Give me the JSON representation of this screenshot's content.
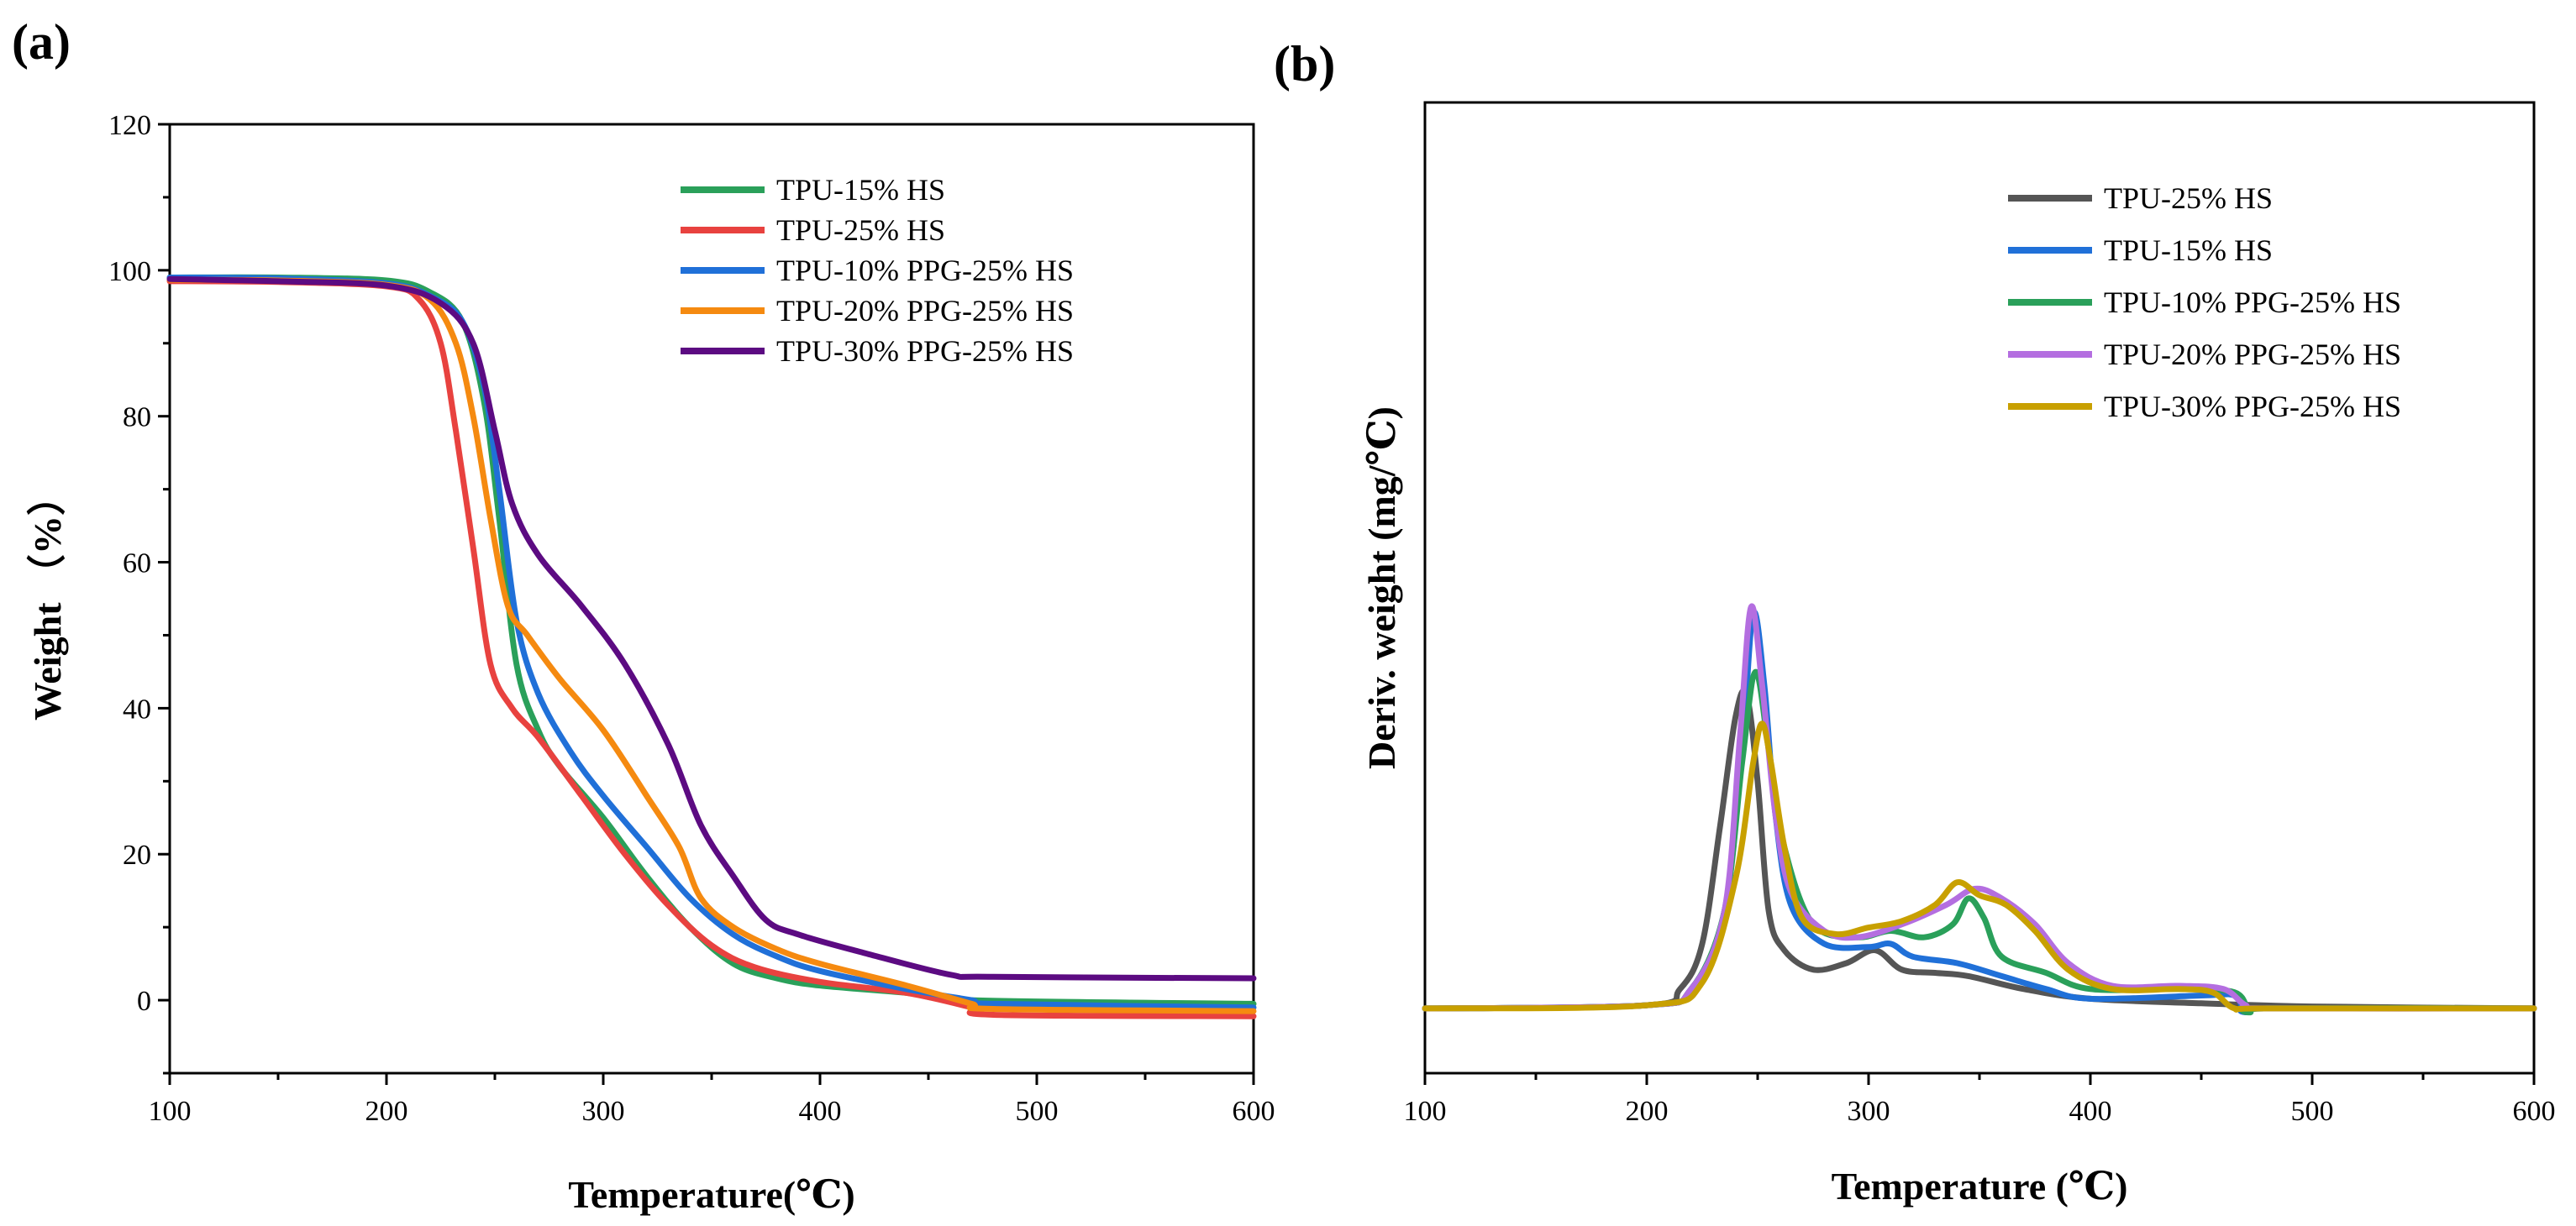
{
  "chart_data": [
    {
      "type": "line",
      "panel_label": "(a)",
      "title": "",
      "xlabel": "Temperature(℃)",
      "ylabel": "Weight （%）",
      "xlim": [
        100,
        600
      ],
      "ylim": [
        -10,
        120
      ],
      "x_ticks": [
        100,
        200,
        300,
        400,
        500,
        600
      ],
      "y_ticks": [
        0,
        20,
        40,
        60,
        80,
        100,
        120
      ],
      "legend_position": "top-right",
      "series": [
        {
          "name": "TPU-15% HS",
          "color": "#2aa05a",
          "points": [
            [
              100,
              99
            ],
            [
              150,
              99
            ],
            [
              200,
              98.6
            ],
            [
              220,
              97
            ],
            [
              235,
              93
            ],
            [
              245,
              82
            ],
            [
              252,
              66
            ],
            [
              260,
              46
            ],
            [
              270,
              37
            ],
            [
              280,
              32
            ],
            [
              300,
              25
            ],
            [
              320,
              17
            ],
            [
              340,
              10
            ],
            [
              360,
              5
            ],
            [
              380,
              3
            ],
            [
              400,
              2
            ],
            [
              440,
              1
            ],
            [
              470,
              0
            ],
            [
              600,
              -0.5
            ]
          ]
        },
        {
          "name": "TPU-25% HS",
          "color": "#e8423f",
          "points": [
            [
              100,
              98.5
            ],
            [
              150,
              98.4
            ],
            [
              200,
              97.8
            ],
            [
              215,
              96
            ],
            [
              225,
              90
            ],
            [
              232,
              78
            ],
            [
              240,
              62
            ],
            [
              248,
              46
            ],
            [
              258,
              40
            ],
            [
              270,
              36
            ],
            [
              290,
              28
            ],
            [
              310,
              20
            ],
            [
              330,
              13
            ],
            [
              350,
              7.5
            ],
            [
              370,
              4.5
            ],
            [
              400,
              2.5
            ],
            [
              440,
              1
            ],
            [
              470,
              -1
            ],
            [
              480,
              -2
            ],
            [
              600,
              -2.2
            ]
          ]
        },
        {
          "name": "TPU-10% PPG-25% HS",
          "color": "#2070d8",
          "points": [
            [
              100,
              99
            ],
            [
              150,
              98.9
            ],
            [
              200,
              98.2
            ],
            [
              220,
              96.5
            ],
            [
              235,
              93
            ],
            [
              245,
              84
            ],
            [
              252,
              70
            ],
            [
              260,
              52
            ],
            [
              270,
              42
            ],
            [
              285,
              34
            ],
            [
              300,
              28
            ],
            [
              320,
              21
            ],
            [
              340,
              14
            ],
            [
              360,
              9
            ],
            [
              380,
              6
            ],
            [
              400,
              4
            ],
            [
              440,
              1.5
            ],
            [
              470,
              0
            ],
            [
              480,
              -0.5
            ],
            [
              600,
              -1
            ]
          ]
        },
        {
          "name": "TPU-20% PPG-25% HS",
          "color": "#f58a10",
          "points": [
            [
              100,
              98.7
            ],
            [
              150,
              98.6
            ],
            [
              200,
              98
            ],
            [
              220,
              96
            ],
            [
              232,
              90
            ],
            [
              240,
              80
            ],
            [
              248,
              66
            ],
            [
              256,
              54
            ],
            [
              265,
              50
            ],
            [
              280,
              44
            ],
            [
              300,
              37
            ],
            [
              320,
              28
            ],
            [
              335,
              21
            ],
            [
              345,
              14
            ],
            [
              360,
              10
            ],
            [
              380,
              7
            ],
            [
              400,
              5
            ],
            [
              440,
              2
            ],
            [
              470,
              -0.5
            ],
            [
              480,
              -1.2
            ],
            [
              600,
              -1.5
            ]
          ]
        },
        {
          "name": "TPU-30% PPG-25% HS",
          "color": "#5c0b82",
          "points": [
            [
              100,
              98.8
            ],
            [
              150,
              98.5
            ],
            [
              200,
              97.9
            ],
            [
              225,
              95.5
            ],
            [
              240,
              90
            ],
            [
              250,
              78
            ],
            [
              258,
              68
            ],
            [
              270,
              61
            ],
            [
              290,
              54
            ],
            [
              310,
              46
            ],
            [
              330,
              35
            ],
            [
              345,
              24
            ],
            [
              360,
              17
            ],
            [
              375,
              11
            ],
            [
              390,
              9
            ],
            [
              420,
              6.5
            ],
            [
              460,
              3.5
            ],
            [
              480,
              3.2
            ],
            [
              600,
              3
            ]
          ]
        }
      ]
    },
    {
      "type": "line",
      "panel_label": "(b)",
      "title": "",
      "xlabel": "Temperature (℃)",
      "ylabel": "Deriv. weight (mg/℃)",
      "xlim": [
        100,
        600
      ],
      "ylim": [
        -1,
        14
      ],
      "x_ticks": [
        100,
        200,
        300,
        400,
        500,
        600
      ],
      "y_ticks": [],
      "legend_position": "top-right",
      "series": [
        {
          "name": "TPU-25% HS",
          "color": "#555555",
          "points": [
            [
              100,
              0
            ],
            [
              200,
              0.05
            ],
            [
              215,
              0.3
            ],
            [
              225,
              1
            ],
            [
              233,
              2.8
            ],
            [
              240,
              4.5
            ],
            [
              245,
              4.85
            ],
            [
              250,
              3.5
            ],
            [
              255,
              1.5
            ],
            [
              262,
              0.9
            ],
            [
              275,
              0.6
            ],
            [
              290,
              0.7
            ],
            [
              303,
              0.9
            ],
            [
              315,
              0.6
            ],
            [
              330,
              0.55
            ],
            [
              345,
              0.5
            ],
            [
              370,
              0.3
            ],
            [
              400,
              0.15
            ],
            [
              450,
              0.08
            ],
            [
              500,
              0.03
            ],
            [
              600,
              0
            ]
          ]
        },
        {
          "name": "TPU-15% HS",
          "color": "#2070d8",
          "points": [
            [
              100,
              0
            ],
            [
              200,
              0.05
            ],
            [
              220,
              0.3
            ],
            [
              235,
              1.5
            ],
            [
              243,
              4
            ],
            [
              248,
              6.1
            ],
            [
              253,
              5
            ],
            [
              258,
              3
            ],
            [
              265,
              1.6
            ],
            [
              280,
              1
            ],
            [
              300,
              0.95
            ],
            [
              310,
              1
            ],
            [
              320,
              0.8
            ],
            [
              340,
              0.7
            ],
            [
              360,
              0.5
            ],
            [
              380,
              0.3
            ],
            [
              400,
              0.15
            ],
            [
              450,
              0.2
            ],
            [
              465,
              0.2
            ],
            [
              470,
              -0.05
            ],
            [
              480,
              0
            ],
            [
              600,
              0
            ]
          ]
        },
        {
          "name": "TPU-10% PPG-25% HS",
          "color": "#2aa05a",
          "points": [
            [
              100,
              0
            ],
            [
              200,
              0.05
            ],
            [
              220,
              0.3
            ],
            [
              235,
              1.5
            ],
            [
              243,
              3.8
            ],
            [
              249,
              5.2
            ],
            [
              255,
              4
            ],
            [
              262,
              2.5
            ],
            [
              275,
              1.3
            ],
            [
              295,
              1.1
            ],
            [
              310,
              1.2
            ],
            [
              325,
              1.1
            ],
            [
              338,
              1.3
            ],
            [
              345,
              1.7
            ],
            [
              352,
              1.4
            ],
            [
              360,
              0.8
            ],
            [
              380,
              0.55
            ],
            [
              400,
              0.3
            ],
            [
              440,
              0.3
            ],
            [
              465,
              0.25
            ],
            [
              472,
              -0.05
            ],
            [
              480,
              0
            ],
            [
              600,
              0
            ]
          ]
        },
        {
          "name": "TPU-20% PPG-25% HS",
          "color": "#b46ee0",
          "points": [
            [
              100,
              0
            ],
            [
              200,
              0.05
            ],
            [
              220,
              0.3
            ],
            [
              235,
              1.5
            ],
            [
              242,
              4.2
            ],
            [
              247,
              6.2
            ],
            [
              252,
              5
            ],
            [
              258,
              3
            ],
            [
              265,
              1.8
            ],
            [
              280,
              1.2
            ],
            [
              295,
              1.1
            ],
            [
              315,
              1.3
            ],
            [
              335,
              1.6
            ],
            [
              348,
              1.85
            ],
            [
              360,
              1.7
            ],
            [
              375,
              1.3
            ],
            [
              390,
              0.7
            ],
            [
              410,
              0.35
            ],
            [
              440,
              0.35
            ],
            [
              460,
              0.3
            ],
            [
              470,
              0.05
            ],
            [
              480,
              0
            ],
            [
              600,
              0
            ]
          ]
        },
        {
          "name": "TPU-30% PPG-25% HS",
          "color": "#c8a000",
          "points": [
            [
              100,
              0
            ],
            [
              200,
              0.05
            ],
            [
              225,
              0.4
            ],
            [
              240,
              2
            ],
            [
              248,
              3.8
            ],
            [
              252,
              4.4
            ],
            [
              256,
              3.8
            ],
            [
              262,
              2.5
            ],
            [
              270,
              1.4
            ],
            [
              285,
              1.15
            ],
            [
              300,
              1.25
            ],
            [
              315,
              1.35
            ],
            [
              330,
              1.6
            ],
            [
              340,
              1.95
            ],
            [
              350,
              1.75
            ],
            [
              362,
              1.6
            ],
            [
              375,
              1.2
            ],
            [
              390,
              0.6
            ],
            [
              410,
              0.3
            ],
            [
              440,
              0.3
            ],
            [
              455,
              0.25
            ],
            [
              465,
              0
            ],
            [
              480,
              0
            ],
            [
              600,
              0
            ]
          ]
        }
      ]
    }
  ]
}
